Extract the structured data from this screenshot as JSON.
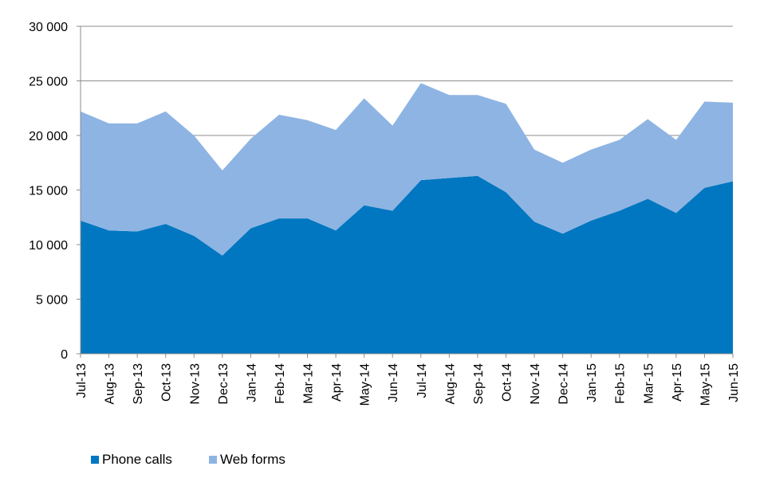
{
  "chart_data": {
    "type": "area",
    "stacked": true,
    "title": "",
    "xlabel": "",
    "ylabel": "",
    "categories": [
      "Jul-13",
      "Aug-13",
      "Sep-13",
      "Oct-13",
      "Nov-13",
      "Dec-13",
      "Jan-14",
      "Feb-14",
      "Mar-14",
      "Apr-14",
      "May-14",
      "Jun-14",
      "Jul-14",
      "Aug-14",
      "Sep-14",
      "Oct-14",
      "Nov-14",
      "Dec-14",
      "Jan-15",
      "Feb-15",
      "Mar-15",
      "Apr-15",
      "May-15",
      "Jun-15"
    ],
    "ylim": [
      0,
      30000
    ],
    "yticks": [
      0,
      5000,
      10000,
      15000,
      20000,
      25000,
      30000
    ],
    "ytick_labels": [
      "0",
      "5 000",
      "10 000",
      "15 000",
      "20 000",
      "25 000",
      "30 000"
    ],
    "grid": "horizontal",
    "legend_position": "bottom-left",
    "series": [
      {
        "name": "Phone calls",
        "color": "#0077c0",
        "values": [
          12200,
          11300,
          11200,
          11900,
          10800,
          9000,
          11500,
          12400,
          12400,
          11300,
          13600,
          13100,
          15900,
          16100,
          16300,
          14800,
          12100,
          11000,
          12200,
          13100,
          14200,
          12900,
          15200,
          15800
        ]
      },
      {
        "name": "Web forms",
        "color": "#8eb4e3",
        "values": [
          10000,
          9800,
          9900,
          10300,
          9200,
          7800,
          8200,
          9500,
          9000,
          9200,
          9800,
          7800,
          8900,
          7600,
          7400,
          8100,
          6600,
          6500,
          6500,
          6500,
          7300,
          6700,
          7900,
          7200
        ]
      }
    ]
  }
}
